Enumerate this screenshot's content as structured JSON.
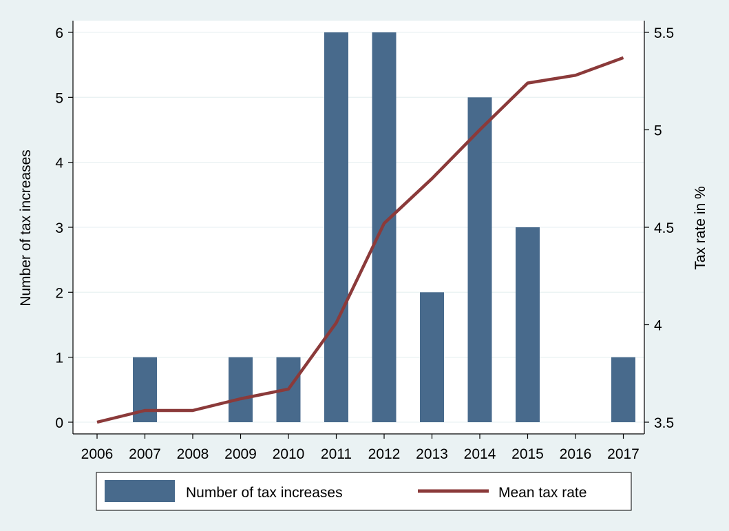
{
  "chart_data": {
    "type": "bar",
    "categories": [
      "2006",
      "2007",
      "2008",
      "2009",
      "2010",
      "2011",
      "2012",
      "2013",
      "2014",
      "2015",
      "2016",
      "2017"
    ],
    "series": [
      {
        "name": "Number of tax increases",
        "type": "bar",
        "axis": "left",
        "color": "#486a8c",
        "values": [
          0,
          1,
          0,
          1,
          1,
          6,
          6,
          2,
          5,
          3,
          0,
          1
        ]
      },
      {
        "name": "Mean tax rate",
        "type": "line",
        "axis": "right",
        "color": "#8b3a3a",
        "values": [
          3.5,
          3.56,
          3.56,
          3.62,
          3.67,
          4.01,
          4.52,
          4.75,
          5.0,
          5.24,
          5.28,
          5.37
        ]
      }
    ],
    "ylabel_left": "Number of tax increases",
    "ylabel_right": "Tax rate in %",
    "ylim_left": [
      0,
      6
    ],
    "ylim_right": [
      3.5,
      5.5
    ],
    "yticks_left": [
      "0",
      "1",
      "2",
      "3",
      "4",
      "5",
      "6"
    ],
    "yticks_right": [
      "3.5",
      "4",
      "4.5",
      "5",
      "5.5"
    ],
    "grid": true,
    "legend_position": "bottom"
  }
}
